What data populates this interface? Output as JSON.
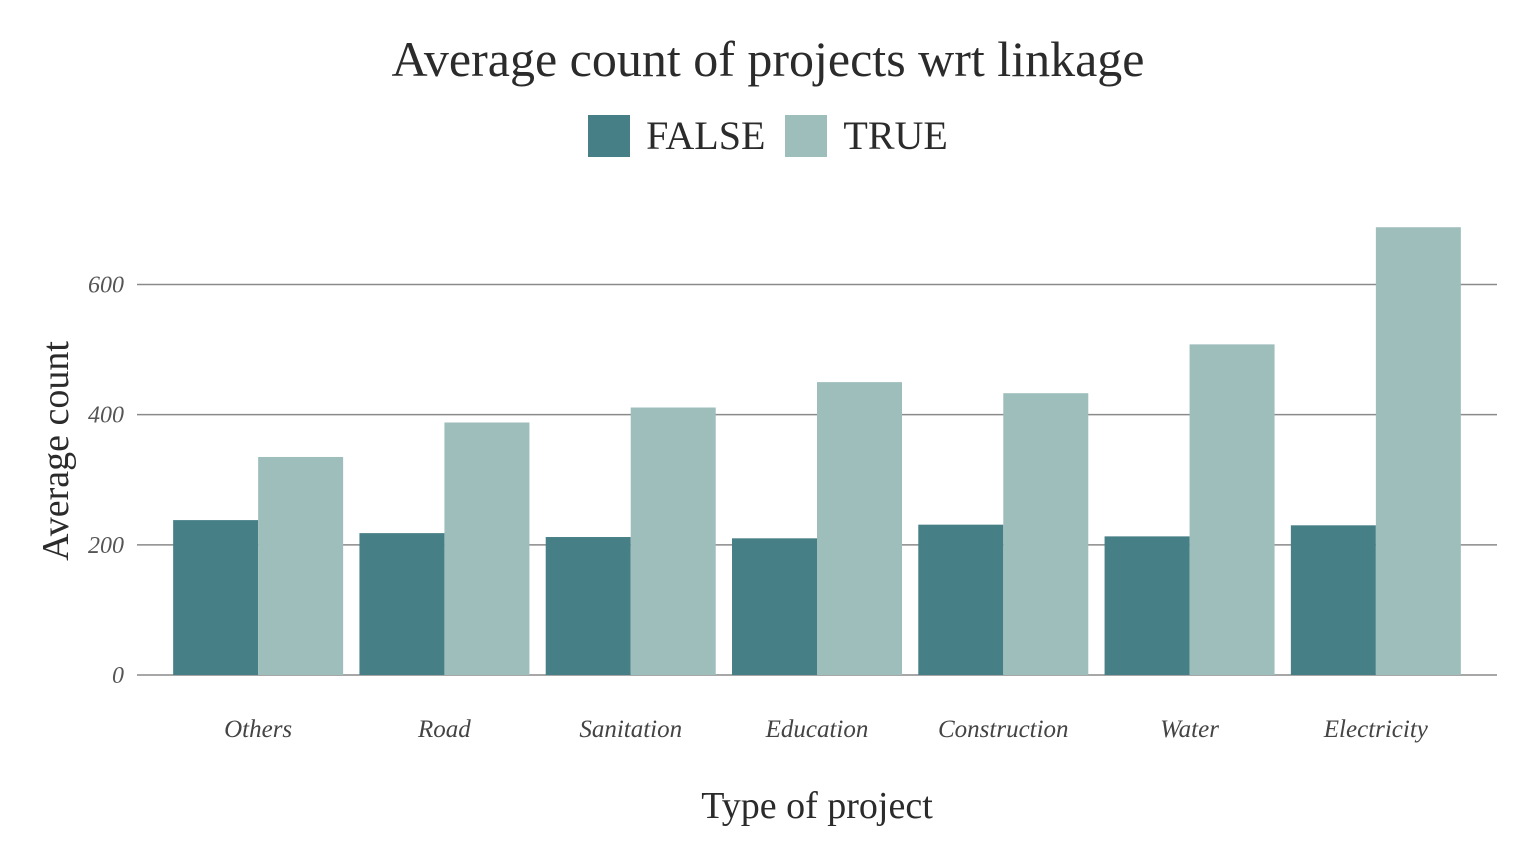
{
  "chart_data": {
    "type": "bar",
    "title": "Average count of projects wrt linkage",
    "xlabel": "Type of project",
    "ylabel": "Average count",
    "categories": [
      "Others",
      "Road",
      "Sanitation",
      "Education",
      "Construction",
      "Water",
      "Electricity"
    ],
    "series": [
      {
        "name": "FALSE",
        "color": "#467f86",
        "values": [
          238,
          218,
          212,
          210,
          231,
          213,
          230
        ]
      },
      {
        "name": "TRUE",
        "color": "#9ebebc",
        "values": [
          335,
          388,
          411,
          450,
          433,
          508,
          688
        ]
      }
    ],
    "yticks": [
      0,
      200,
      400,
      600
    ],
    "ylim": [
      0,
      700
    ],
    "grid": true,
    "legend": "top-center"
  }
}
